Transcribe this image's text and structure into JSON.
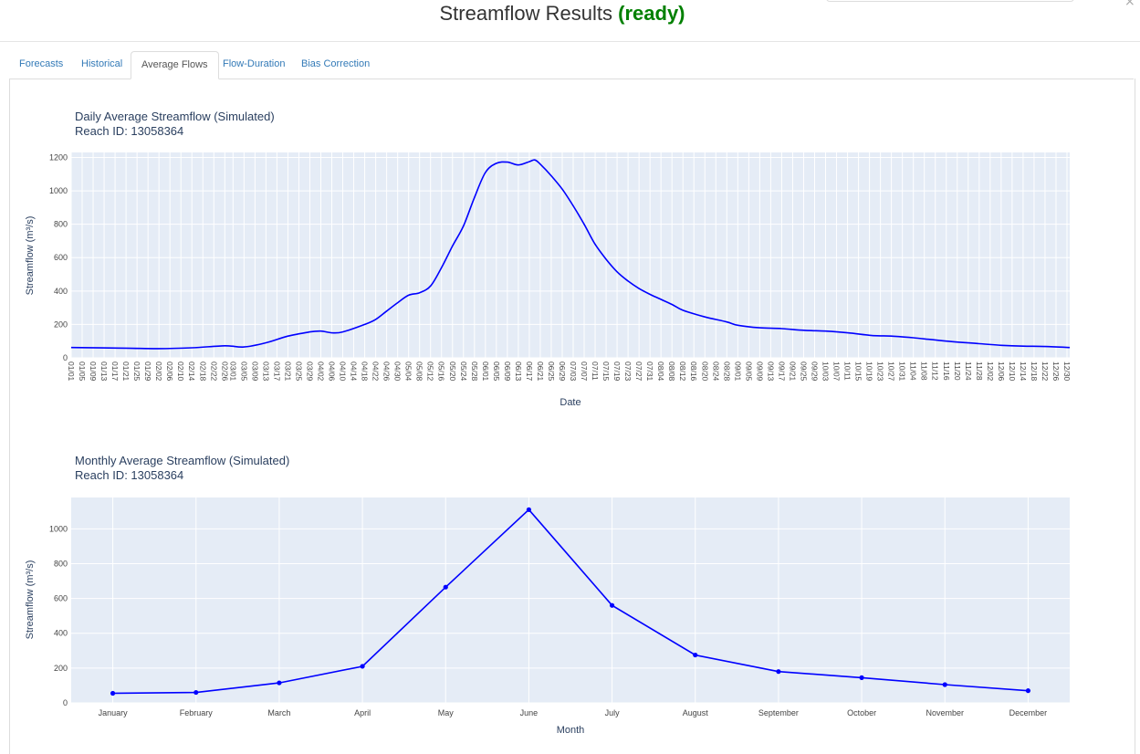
{
  "modal": {
    "title": "Streamflow Results",
    "status": "(ready)",
    "close_glyph": "×"
  },
  "tabs": [
    {
      "label": "Forecasts",
      "active": false
    },
    {
      "label": "Historical",
      "active": false
    },
    {
      "label": "Average Flows",
      "active": true
    },
    {
      "label": "Flow-Duration",
      "active": false
    },
    {
      "label": "Bias Correction",
      "active": false
    }
  ],
  "colors": {
    "accent": "#0000ff",
    "plot_bg": "#e5ecf6",
    "status_green": "#008000",
    "tab_link": "#337ab7"
  },
  "chart_data": [
    {
      "type": "line",
      "title": "Daily Average Streamflow (Simulated)",
      "subtitle": "Reach ID: 13058364",
      "xlabel": "Date",
      "ylabel": "Streamflow (m³/s)",
      "ylim": [
        0,
        1230
      ],
      "yticks": [
        0,
        200,
        400,
        600,
        800,
        1000,
        1200
      ],
      "grid": true,
      "xtick_labels": [
        "01/01",
        "01/05",
        "01/09",
        "01/13",
        "01/17",
        "01/21",
        "01/25",
        "01/29",
        "02/02",
        "02/06",
        "02/10",
        "02/14",
        "02/18",
        "02/22",
        "02/26",
        "03/01",
        "03/05",
        "03/09",
        "03/13",
        "03/17",
        "03/21",
        "03/25",
        "03/29",
        "04/02",
        "04/06",
        "04/10",
        "04/14",
        "04/18",
        "04/22",
        "04/26",
        "04/30",
        "05/04",
        "05/08",
        "05/12",
        "05/16",
        "05/20",
        "05/24",
        "05/28",
        "06/01",
        "06/05",
        "06/09",
        "06/13",
        "06/17",
        "06/21",
        "06/25",
        "06/29",
        "07/03",
        "07/07",
        "07/11",
        "07/15",
        "07/19",
        "07/23",
        "07/27",
        "07/31",
        "08/04",
        "08/08",
        "08/12",
        "08/16",
        "08/20",
        "08/24",
        "08/28",
        "09/01",
        "09/05",
        "09/09",
        "09/13",
        "09/17",
        "09/21",
        "09/25",
        "09/29",
        "10/03",
        "10/07",
        "10/11",
        "10/15",
        "10/19",
        "10/23",
        "10/27",
        "10/31",
        "11/04",
        "11/08",
        "11/12",
        "11/16",
        "11/20",
        "11/24",
        "11/28",
        "12/02",
        "12/06",
        "12/10",
        "12/14",
        "12/18",
        "12/22",
        "12/26",
        "12/30"
      ],
      "series": [
        {
          "color": "#0000ff",
          "x": [
            "01/01",
            "01/21",
            "02/02",
            "02/14",
            "02/26",
            "03/05",
            "03/13",
            "03/21",
            "03/29",
            "04/02",
            "04/06",
            "04/10",
            "04/18",
            "04/22",
            "04/26",
            "04/30",
            "05/04",
            "05/08",
            "05/12",
            "05/16",
            "05/20",
            "05/24",
            "05/28",
            "06/01",
            "06/05",
            "06/09",
            "06/13",
            "06/17",
            "06/19",
            "06/21",
            "06/25",
            "06/29",
            "07/03",
            "07/07",
            "07/11",
            "07/15",
            "07/19",
            "07/23",
            "07/27",
            "07/31",
            "08/04",
            "08/08",
            "08/12",
            "08/20",
            "08/28",
            "09/01",
            "09/09",
            "09/17",
            "09/25",
            "10/03",
            "10/11",
            "10/19",
            "10/23",
            "10/27",
            "11/04",
            "11/16",
            "11/28",
            "12/06",
            "12/14",
            "12/22",
            "12/31"
          ],
          "values": [
            62,
            58,
            55,
            60,
            72,
            65,
            90,
            130,
            155,
            160,
            150,
            155,
            200,
            230,
            280,
            330,
            375,
            390,
            430,
            540,
            670,
            790,
            960,
            1110,
            1165,
            1172,
            1155,
            1175,
            1185,
            1160,
            1090,
            1010,
            910,
            800,
            680,
            590,
            515,
            460,
            415,
            380,
            350,
            320,
            285,
            245,
            215,
            195,
            180,
            175,
            165,
            160,
            150,
            135,
            132,
            130,
            120,
            100,
            85,
            75,
            70,
            68,
            62
          ]
        }
      ]
    },
    {
      "type": "line",
      "title": "Monthly Average Streamflow (Simulated)",
      "subtitle": "Reach ID: 13058364",
      "xlabel": "Month",
      "ylabel": "Streamflow (m³/s)",
      "ylim": [
        0,
        1180
      ],
      "yticks": [
        0,
        200,
        400,
        600,
        800,
        1000
      ],
      "grid": true,
      "categories": [
        "January",
        "February",
        "March",
        "April",
        "May",
        "June",
        "July",
        "August",
        "September",
        "October",
        "November",
        "December"
      ],
      "series": [
        {
          "color": "#0000ff",
          "values": [
            55,
            60,
            115,
            210,
            665,
            1110,
            560,
            275,
            180,
            145,
            105,
            70
          ]
        }
      ]
    }
  ]
}
